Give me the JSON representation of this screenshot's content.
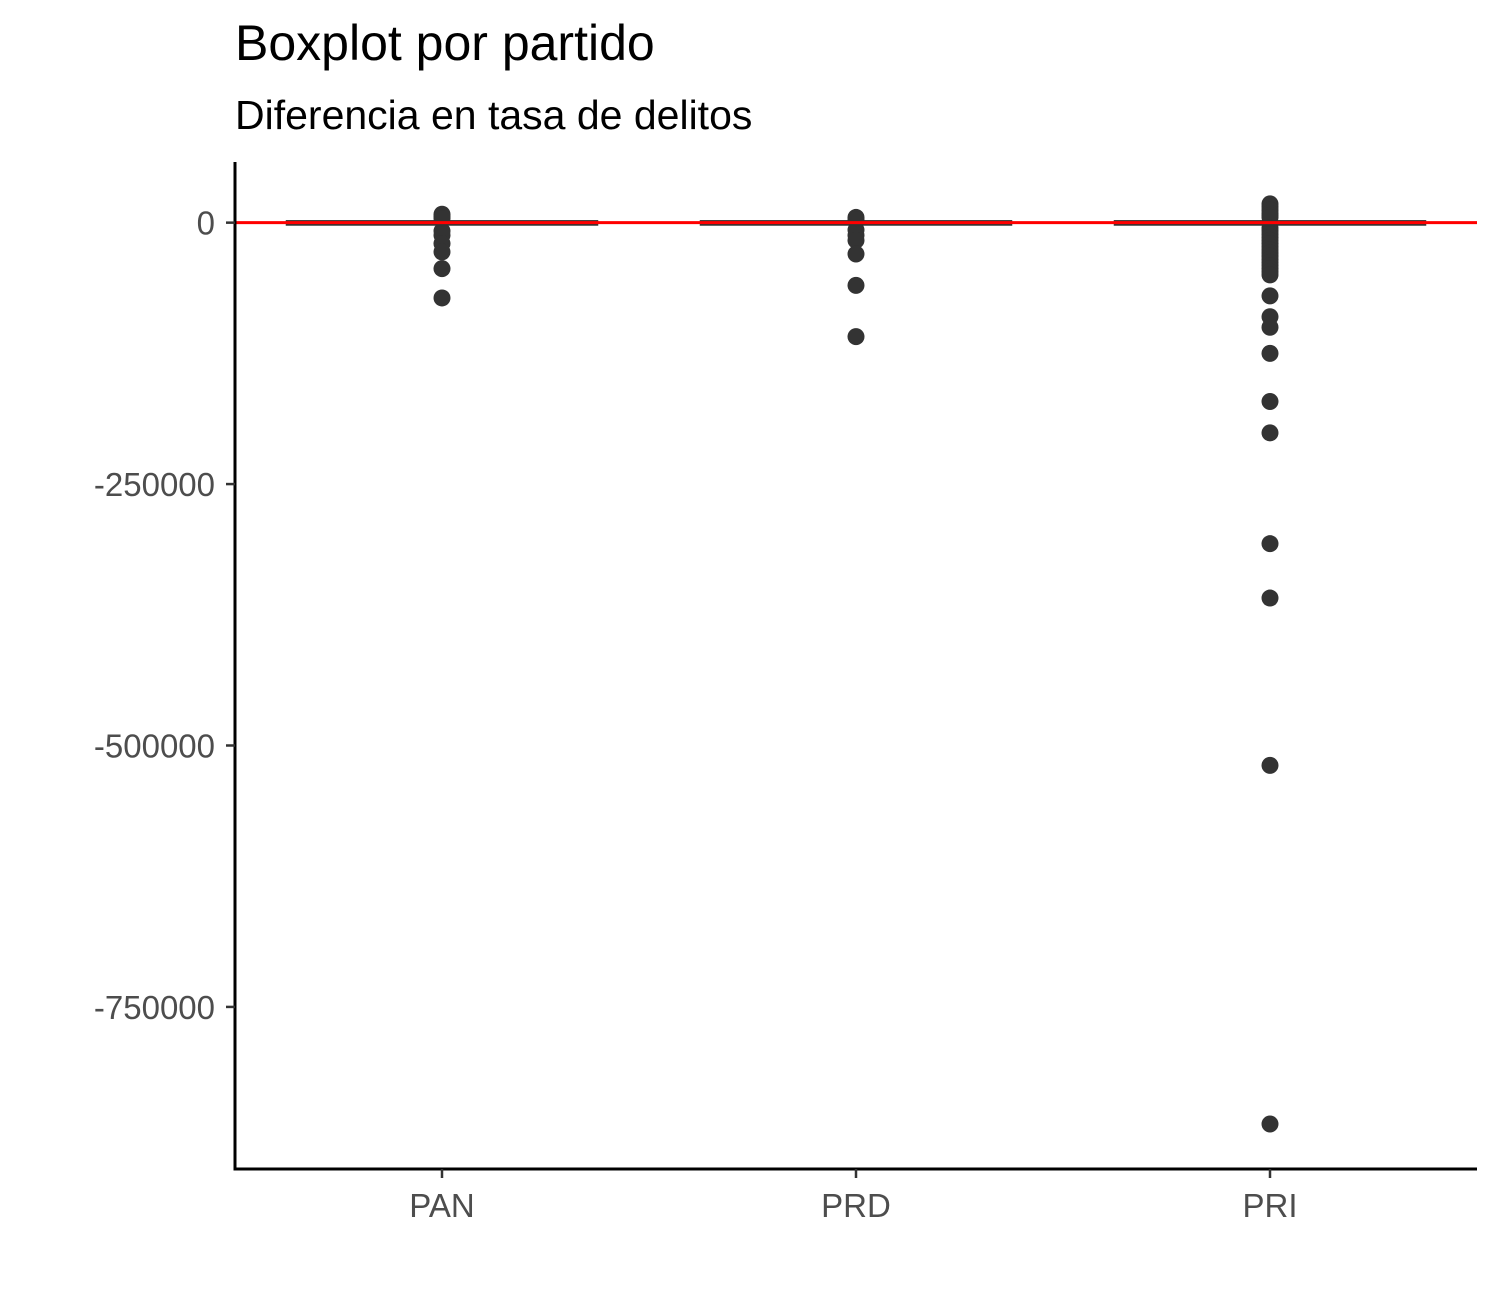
{
  "chart_data": {
    "type": "boxplot",
    "title": "Boxplot por partido",
    "subtitle": "Diferencia en tasa de delitos",
    "xlabel": "",
    "ylabel": "",
    "categories": [
      "PAN",
      "PRD",
      "PRI"
    ],
    "y_ticks": [
      0,
      -250000,
      -500000,
      -750000
    ],
    "y_tick_labels": [
      "0",
      "-250000",
      "-500000",
      "-750000"
    ],
    "ylim": [
      -905000,
      58000
    ],
    "reference_line": {
      "y": 0,
      "color": "#ff0000"
    },
    "boxes": [
      {
        "name": "PAN",
        "q1": -2000,
        "median": -300,
        "q3": 1500,
        "whisker_low": -4000,
        "whisker_high": 3500,
        "outliers": [
          8000,
          6000,
          4000,
          -8000,
          -12000,
          -20000,
          -28000,
          -44000,
          -72000
        ]
      },
      {
        "name": "PRD",
        "q1": -2000,
        "median": -300,
        "q3": 1500,
        "whisker_low": -4000,
        "whisker_high": 3500,
        "outliers": [
          5000,
          3000,
          -7000,
          -12000,
          -17000,
          -30000,
          -60000,
          -109000
        ]
      },
      {
        "name": "PRI",
        "q1": -2000,
        "median": -300,
        "q3": 1500,
        "whisker_low": -4000,
        "whisker_high": 3500,
        "outliers": [
          18000,
          15000,
          12000,
          9000,
          7000,
          5000,
          -5000,
          -8000,
          -11000,
          -14000,
          -17000,
          -20000,
          -23000,
          -26000,
          -29000,
          -32000,
          -35000,
          -38000,
          -41000,
          -44000,
          -47000,
          -50000,
          -70000,
          -90000,
          -100000,
          -125000,
          -171000,
          -201000,
          -307000,
          -359000,
          -519000,
          -862000
        ]
      }
    ],
    "point_color": "#333333",
    "grid": false,
    "legend": "none"
  }
}
